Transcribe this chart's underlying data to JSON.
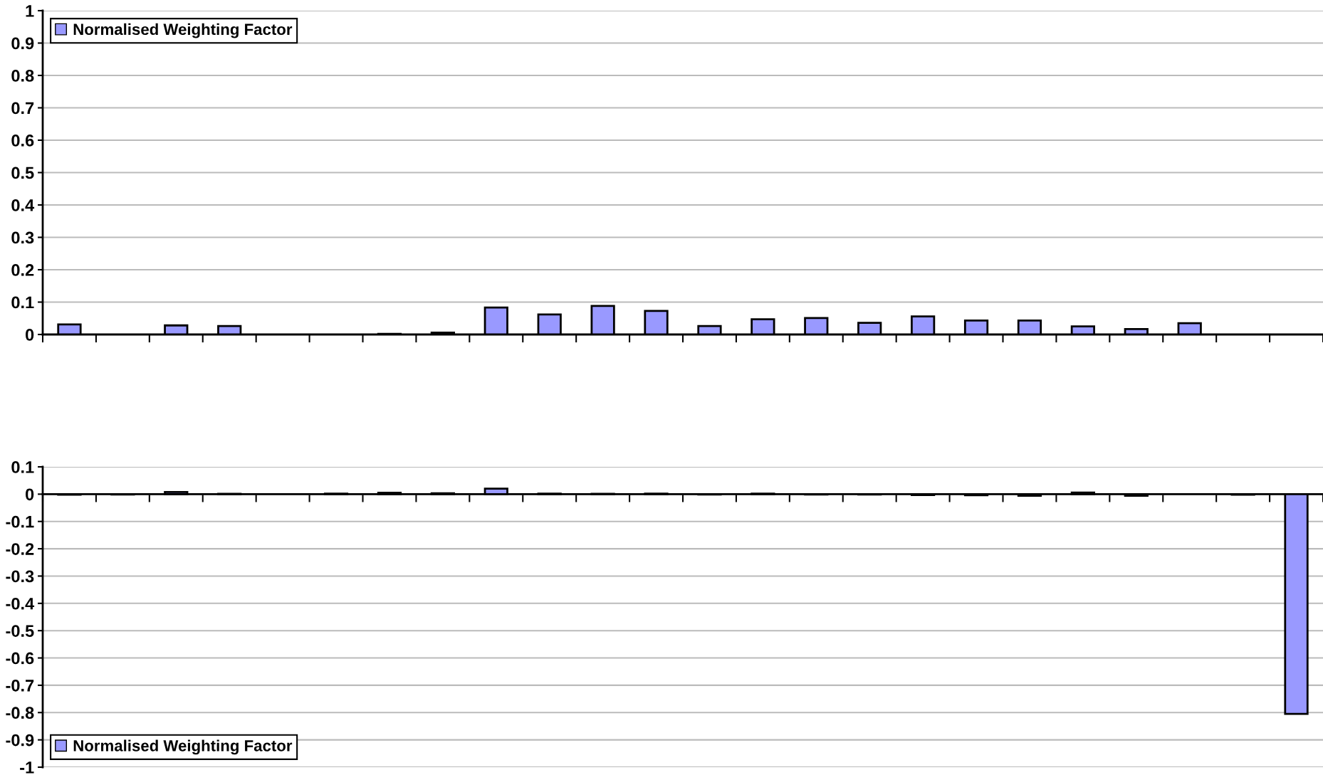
{
  "chart_data": [
    {
      "type": "bar",
      "categories": [
        null,
        null,
        null,
        null,
        null,
        null,
        null,
        null,
        null,
        null,
        null,
        null,
        null,
        null,
        null,
        null,
        null,
        null,
        null,
        null,
        null,
        null,
        null,
        null
      ],
      "series": [
        {
          "name": "Normalised Weighting Factor",
          "color": "#9999ff",
          "values": [
            0.031,
            null,
            0.028,
            0.026,
            null,
            null,
            0.002,
            0.006,
            0.083,
            0.062,
            0.088,
            0.073,
            0.026,
            0.047,
            0.051,
            0.036,
            0.056,
            0.043,
            0.043,
            0.025,
            0.017,
            0.035,
            null,
            null
          ]
        }
      ],
      "ylim": [
        0,
        1
      ],
      "yticks": [
        0,
        0.1,
        0.2,
        0.3,
        0.4,
        0.5,
        0.6,
        0.7,
        0.8,
        0.9,
        1
      ],
      "grid": "y",
      "legend": "top left"
    },
    {
      "type": "bar",
      "categories": [
        null,
        null,
        null,
        null,
        null,
        null,
        null,
        null,
        null,
        null,
        null,
        null,
        null,
        null,
        null,
        null,
        null,
        null,
        null,
        null,
        null,
        null,
        null,
        null
      ],
      "series": [
        {
          "name": "Normalised Weighting Factor",
          "color": "#9999ff",
          "values": [
            -0.002,
            -0.001,
            0.008,
            0.001,
            null,
            0.002,
            0.005,
            0.003,
            0.02,
            0.002,
            0.001,
            0.002,
            -0.001,
            0.002,
            -0.001,
            -0.001,
            -0.003,
            -0.004,
            -0.006,
            0.006,
            -0.006,
            null,
            -0.002,
            -0.805
          ]
        }
      ],
      "ylim": [
        -1,
        0.1
      ],
      "yticks": [
        -1,
        -0.9,
        -0.8,
        -0.7,
        -0.6,
        -0.5,
        -0.4,
        -0.3,
        -0.2,
        -0.1,
        0,
        0.1
      ],
      "grid": "y",
      "legend": "bottom left"
    }
  ]
}
